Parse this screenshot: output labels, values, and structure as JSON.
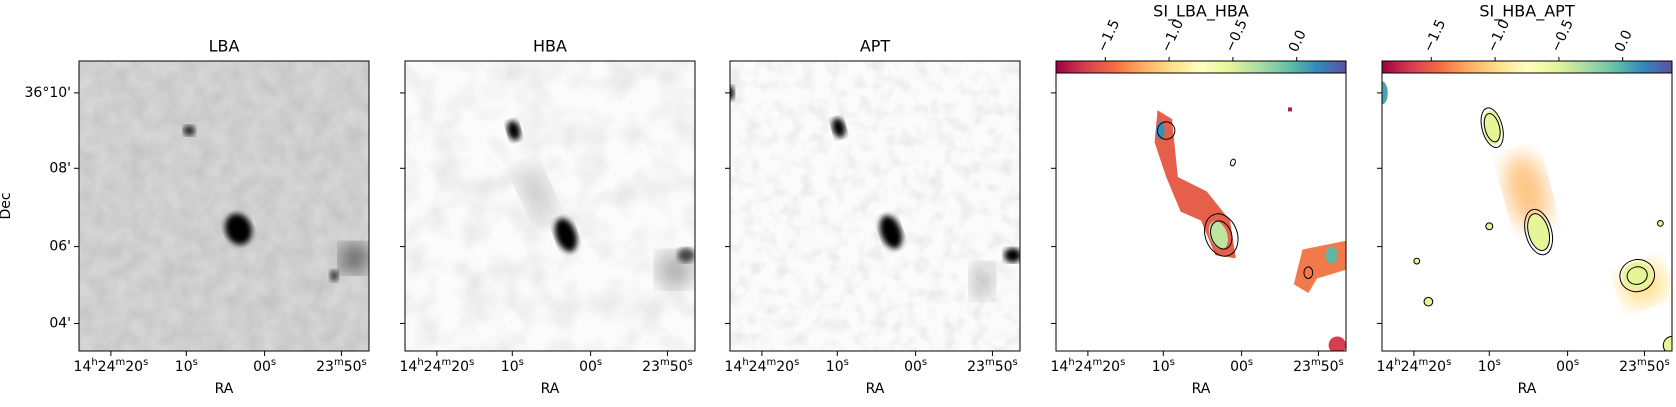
{
  "panels": [
    {
      "title": "LBA",
      "x_label": "RA",
      "x_tick_labels": [
        "14h24m20s",
        "10s",
        "00s",
        "23m50s"
      ]
    },
    {
      "title": "HBA",
      "x_label": "RA",
      "x_tick_labels": [
        "14h24m20s",
        "10s",
        "00s",
        "23m50s"
      ]
    },
    {
      "title": "APT",
      "x_label": "RA",
      "x_tick_labels": [
        "14h24m20s",
        "10s",
        "00s",
        "23m50s"
      ]
    },
    {
      "title": "SI_LBA_HBA",
      "x_label": "RA",
      "x_tick_labels": [
        "14h24m20s",
        "10s",
        "00s",
        "23m50s"
      ],
      "colorbar_tick_labels": [
        "−1.5",
        "−1.0",
        "−0.5",
        "0.0"
      ]
    },
    {
      "title": "SI_HBA_APT",
      "x_label": "RA",
      "x_tick_labels": [
        "14h24m20s",
        "10s",
        "00s",
        "23m50s"
      ],
      "colorbar_tick_labels": [
        "−1.5",
        "−1.0",
        "−0.5",
        "0.0"
      ]
    }
  ],
  "y_label": "Dec",
  "y_tick_labels": [
    "36°10'",
    "08'",
    "06'",
    "04'"
  ]
}
